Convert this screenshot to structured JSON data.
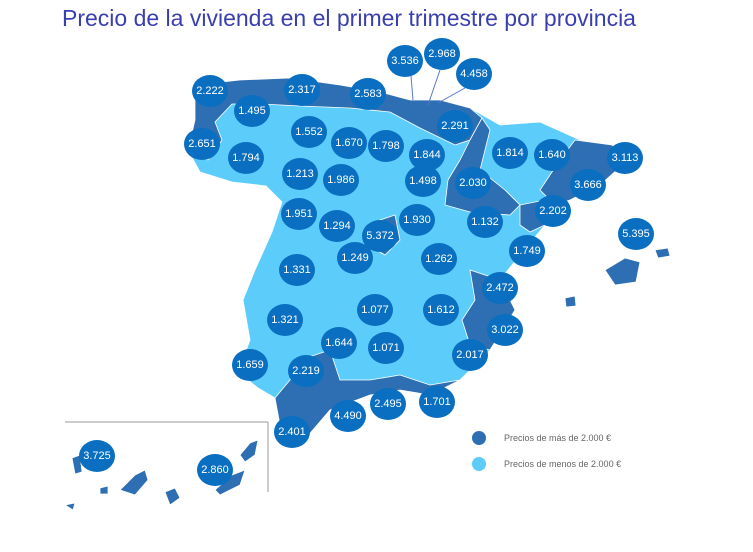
{
  "title": "Precio de la vivienda en el primer trimestre por provincia",
  "colors": {
    "above": "#2e6fb3",
    "below": "#5ccdfb",
    "bubble": "#0a6fc0",
    "title": "#3a3fb0"
  },
  "legend": [
    {
      "label": "Precios de más de 2.000 €",
      "color": "#2e6fb3"
    },
    {
      "label": "Precios de menos de 2.000 €",
      "color": "#5ccdfb"
    }
  ],
  "provinces": [
    "2.222",
    "1.495",
    "2.317",
    "2.583",
    "3.536",
    "2.968",
    "4.458",
    "2.651",
    "1.552",
    "1.670",
    "1.798",
    "2.291",
    "1.794",
    "1.844",
    "1.814",
    "1.640",
    "3.113",
    "1.213",
    "1.986",
    "1.498",
    "2.030",
    "3.666",
    "2.202",
    "1.951",
    "1.294",
    "5.372",
    "1.930",
    "1.132",
    "5.395",
    "1.749",
    "1.249",
    "1.262",
    "1.331",
    "2.472",
    "1.321",
    "1.077",
    "1.612",
    "3.022",
    "1.644",
    "1.071",
    "2.017",
    "1.659",
    "2.219",
    "1.701",
    "2.495",
    "4.490",
    "2.401",
    "3.725",
    "2.860"
  ]
}
